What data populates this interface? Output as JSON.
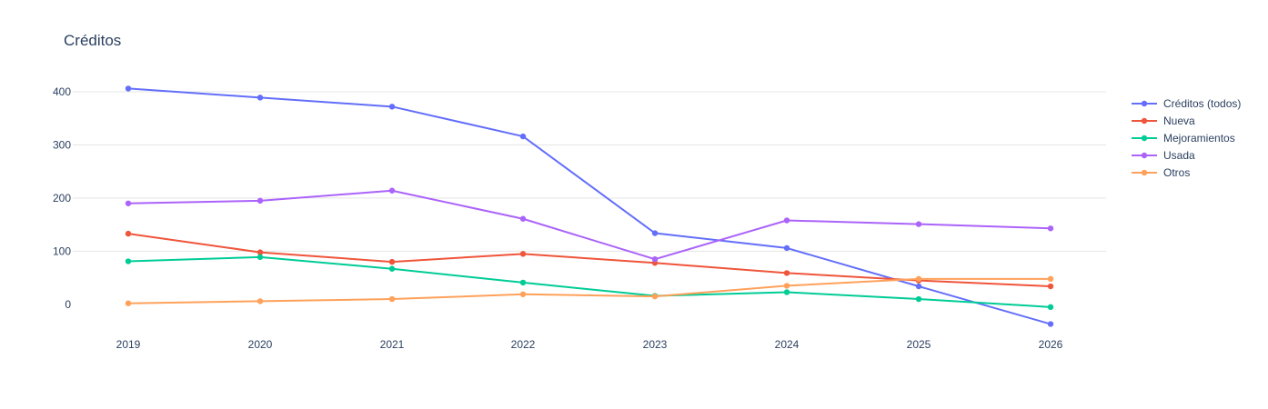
{
  "chart_data": {
    "type": "line",
    "title": "Créditos",
    "xlabel": "",
    "ylabel": "",
    "x": [
      "2019",
      "2020",
      "2021",
      "2022",
      "2023",
      "2024",
      "2025",
      "2026"
    ],
    "yticks": [
      0,
      100,
      200,
      300,
      400
    ],
    "ylim": [
      -60,
      470
    ],
    "grid": true,
    "legend_position": "top-right",
    "series": [
      {
        "name": "Créditos (todos)",
        "color": "#636efa",
        "values": [
          406,
          389,
          372,
          316,
          134,
          106,
          34,
          -37
        ]
      },
      {
        "name": "Nueva",
        "color": "#EF553B",
        "values": [
          133,
          98,
          80,
          95,
          78,
          59,
          45,
          34
        ]
      },
      {
        "name": "Mejoramientos",
        "color": "#00cc96",
        "values": [
          81,
          89,
          67,
          41,
          16,
          23,
          10,
          -5
        ]
      },
      {
        "name": "Usada",
        "color": "#ab63fa",
        "values": [
          190,
          195,
          214,
          161,
          85,
          158,
          151,
          143
        ]
      },
      {
        "name": "Otros",
        "color": "#FFA15A",
        "values": [
          2,
          6,
          10,
          19,
          15,
          35,
          48,
          48
        ]
      }
    ]
  }
}
